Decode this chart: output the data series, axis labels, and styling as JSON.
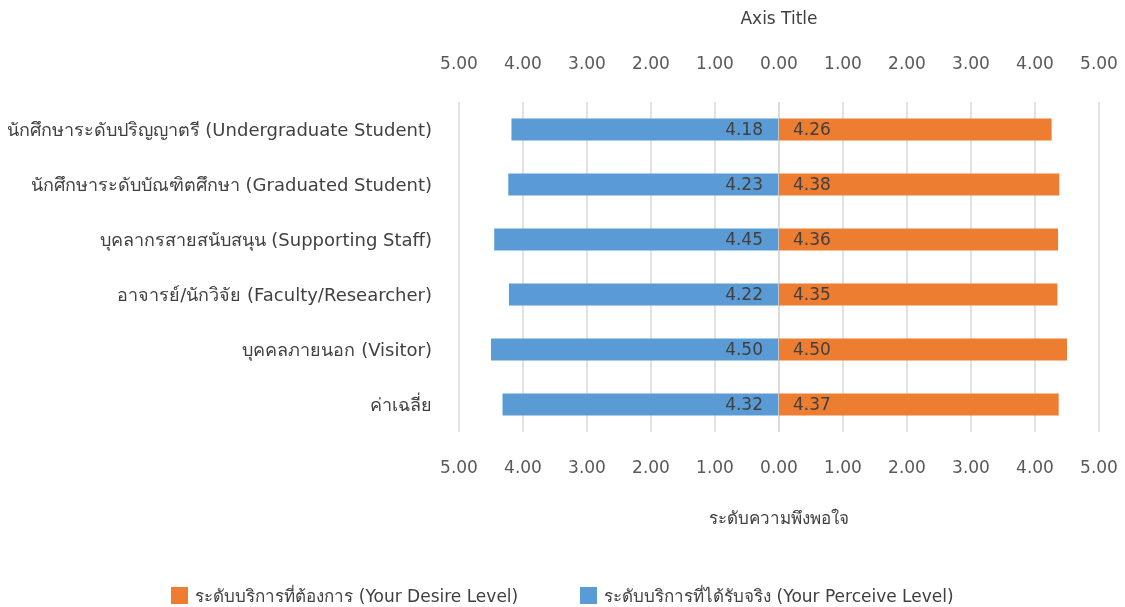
{
  "chart_data": [
    {
      "type": "bar",
      "orientation": "horizontal",
      "x2label": "Axis Title",
      "xlabel": "ระดับความพึงพอใจ",
      "categories": [
        "นักศึกษาระดับปริญญาตรี (Undergraduate Student)",
        "นักศึกษาระดับบัณฑิตศึกษา (Graduated Student)",
        "บุคลากรสายสนับสนุน (Supporting Staff)",
        "อาจารย์/นักวิจัย (Faculty/Researcher)",
        "บุคคลภายนอก (Visitor)",
        "ค่าเฉลี่ย"
      ],
      "series": [
        {
          "name": "ระดับบริการที่ได้รับจริง (Your Perceive Level)",
          "color": "#5b9bd5",
          "values": [
            4.18,
            4.23,
            4.45,
            4.22,
            4.5,
            4.32
          ],
          "value_labels": [
            "4.18",
            "4.23",
            "4.45",
            "4.22",
            "4.50",
            "4.32"
          ]
        }
      ],
      "xlim": [
        5,
        0
      ],
      "xticks": [
        {
          "value": 5,
          "label": "5.00"
        },
        {
          "value": 4,
          "label": "4.00"
        },
        {
          "value": 3,
          "label": "3.00"
        },
        {
          "value": 2,
          "label": "2.00"
        },
        {
          "value": 1,
          "label": "1.00"
        },
        {
          "value": 0,
          "label": "0.00"
        }
      ],
      "x2lim": [
        5,
        0
      ],
      "x2ticks": [
        {
          "value": 5,
          "label": "5.00"
        },
        {
          "value": 4,
          "label": "4.00"
        },
        {
          "value": 3,
          "label": "3.00"
        },
        {
          "value": 2,
          "label": "2.00"
        },
        {
          "value": 1,
          "label": "1.00"
        },
        {
          "value": 0,
          "label": "0.00"
        }
      ],
      "grid": "x",
      "legend": "bottom"
    },
    {
      "type": "bar",
      "orientation": "horizontal",
      "tick_labels": "x",
      "categories": [
        null,
        null,
        null,
        null,
        null,
        null
      ],
      "series": [
        {
          "name": "ระดับบริการที่ต้องการ (Your Desire Level)",
          "color": "#ed7d31",
          "values": [
            4.26,
            4.38,
            4.36,
            4.35,
            4.5,
            4.37
          ],
          "value_labels": [
            "4.26",
            "4.38",
            "4.36",
            "4.35",
            "4.50",
            "4.37"
          ]
        }
      ],
      "xlim": [
        0,
        5
      ],
      "xticks": [
        {
          "value": 0,
          "label": null
        },
        {
          "value": 1,
          "label": "1.00"
        },
        {
          "value": 2,
          "label": "2.00"
        },
        {
          "value": 3,
          "label": "3.00"
        },
        {
          "value": 4,
          "label": "4.00"
        },
        {
          "value": 5,
          "label": "5.00"
        }
      ],
      "x2lim": [
        0,
        5
      ],
      "x2ticks": [
        {
          "value": 0,
          "label": null
        },
        {
          "value": 1,
          "label": "1.00"
        },
        {
          "value": 2,
          "label": "2.00"
        },
        {
          "value": 3,
          "label": "3.00"
        },
        {
          "value": 4,
          "label": "4.00"
        },
        {
          "value": 5,
          "label": "5.00"
        }
      ],
      "grid": "x",
      "legend": "bottom"
    }
  ]
}
